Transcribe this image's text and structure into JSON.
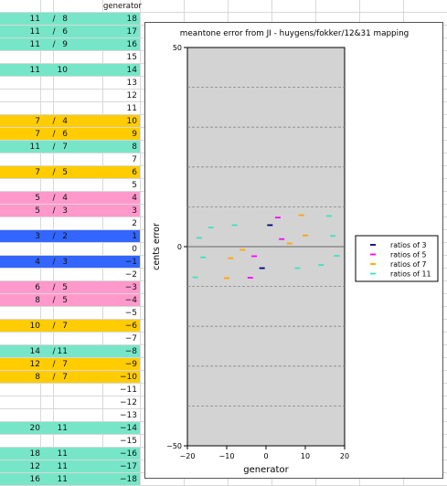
{
  "sheet": {
    "generator_header": "generator",
    "rows": [
      {
        "n": "",
        "d": "",
        "g": "",
        "color": ""
      },
      {
        "n": "11",
        "d": "8",
        "slash": true,
        "g": "18",
        "color": "#77e6c8"
      },
      {
        "n": "11",
        "d": "6",
        "slash": true,
        "g": "17",
        "color": "#77e6c8"
      },
      {
        "n": "11",
        "d": "9",
        "slash": true,
        "g": "16",
        "color": "#77e6c8"
      },
      {
        "n": "",
        "d": "",
        "g": "15",
        "color": ""
      },
      {
        "n": "11",
        "d": "10",
        "slash": false,
        "g": "14",
        "color": "#77e6c8"
      },
      {
        "n": "",
        "d": "",
        "g": "13",
        "color": ""
      },
      {
        "n": "",
        "d": "",
        "g": "12",
        "color": ""
      },
      {
        "n": "",
        "d": "",
        "g": "11",
        "color": ""
      },
      {
        "n": "7",
        "d": "4",
        "slash": true,
        "g": "10",
        "color": "#ffcc00"
      },
      {
        "n": "7",
        "d": "6",
        "slash": true,
        "g": "9",
        "color": "#ffcc00"
      },
      {
        "n": "11",
        "d": "7",
        "slash": true,
        "g": "8",
        "color": "#77e6c8"
      },
      {
        "n": "",
        "d": "",
        "g": "7",
        "color": ""
      },
      {
        "n": "7",
        "d": "5",
        "slash": true,
        "g": "6",
        "color": "#ffcc00"
      },
      {
        "n": "",
        "d": "",
        "g": "5",
        "color": ""
      },
      {
        "n": "5",
        "d": "4",
        "slash": true,
        "g": "4",
        "color": "#ff99cc"
      },
      {
        "n": "5",
        "d": "3",
        "slash": true,
        "g": "3",
        "color": "#ff99cc"
      },
      {
        "n": "",
        "d": "",
        "g": "2",
        "color": ""
      },
      {
        "n": "3",
        "d": "2",
        "slash": true,
        "g": "1",
        "color": "#3366ff"
      },
      {
        "n": "",
        "d": "",
        "g": "0",
        "color": ""
      },
      {
        "n": "4",
        "d": "3",
        "slash": true,
        "g": "−1",
        "color": "#3366ff"
      },
      {
        "n": "",
        "d": "",
        "g": "−2",
        "color": ""
      },
      {
        "n": "6",
        "d": "5",
        "slash": true,
        "g": "−3",
        "color": "#ff99cc"
      },
      {
        "n": "8",
        "d": "5",
        "slash": true,
        "g": "−4",
        "color": "#ff99cc"
      },
      {
        "n": "",
        "d": "",
        "g": "−5",
        "color": ""
      },
      {
        "n": "10",
        "d": "7",
        "slash": true,
        "g": "−6",
        "color": "#ffcc00"
      },
      {
        "n": "",
        "d": "",
        "g": "−7",
        "color": ""
      },
      {
        "n": "14",
        "d": "11",
        "slash": true,
        "g": "−8",
        "color": "#77e6c8"
      },
      {
        "n": "12",
        "d": "7",
        "slash": true,
        "g": "−9",
        "color": "#ffcc00"
      },
      {
        "n": "8",
        "d": "7",
        "slash": true,
        "g": "−10",
        "color": "#ffcc00"
      },
      {
        "n": "",
        "d": "",
        "g": "−11",
        "color": ""
      },
      {
        "n": "",
        "d": "",
        "g": "−12",
        "color": ""
      },
      {
        "n": "",
        "d": "",
        "g": "−13",
        "color": ""
      },
      {
        "n": "20",
        "d": "11",
        "slash": false,
        "g": "−14",
        "color": "#77e6c8"
      },
      {
        "n": "",
        "d": "",
        "g": "−15",
        "color": ""
      },
      {
        "n": "18",
        "d": "11",
        "slash": false,
        "g": "−16",
        "color": "#77e6c8"
      },
      {
        "n": "12",
        "d": "11",
        "slash": false,
        "g": "−17",
        "color": "#77e6c8"
      },
      {
        "n": "16",
        "d": "11",
        "slash": false,
        "g": "−18",
        "color": "#77e6c8"
      }
    ]
  },
  "chart_data": {
    "type": "scatter",
    "title": "meantone error from JI - huygens/fokker/12&31 mapping",
    "xlabel": "generator",
    "ylabel": "cents error",
    "xlim": [
      -20,
      20
    ],
    "ylim": [
      -50,
      50
    ],
    "xticks": [
      "−20",
      "−10",
      "0",
      "10",
      "20"
    ],
    "yticks": [
      "50",
      "0",
      "−50"
    ],
    "grid": "horizontal dashed every 10 cents",
    "plot_background": "#d3d3d3",
    "legend_position": "right",
    "series": [
      {
        "name": "ratios of 3",
        "color": "#000080",
        "points": [
          [
            1,
            5.4
          ],
          [
            -1,
            -5.4
          ]
        ]
      },
      {
        "name": "ratios of 5",
        "color": "#ff00ff",
        "points": [
          [
            4,
            1.9
          ],
          [
            3,
            7.3
          ],
          [
            -3,
            -2.4
          ],
          [
            -4,
            -7.8
          ]
        ]
      },
      {
        "name": "ratios of 7",
        "color": "#ffa500",
        "points": [
          [
            10,
            2.8
          ],
          [
            9,
            7.9
          ],
          [
            6,
            0.8
          ],
          [
            -6,
            -0.8
          ],
          [
            -9,
            -2.9
          ],
          [
            -10,
            -7.9
          ]
        ]
      },
      {
        "name": "ratios of 11",
        "color": "#40e0c0",
        "points": [
          [
            18,
            -2.3
          ],
          [
            17,
            2.7
          ],
          [
            16,
            7.7
          ],
          [
            14,
            -4.6
          ],
          [
            8,
            -5.4
          ],
          [
            -8,
            5.4
          ],
          [
            -14,
            4.8
          ],
          [
            -16,
            -2.7
          ],
          [
            -17,
            2.2
          ],
          [
            -18,
            -7.7
          ]
        ]
      }
    ]
  }
}
